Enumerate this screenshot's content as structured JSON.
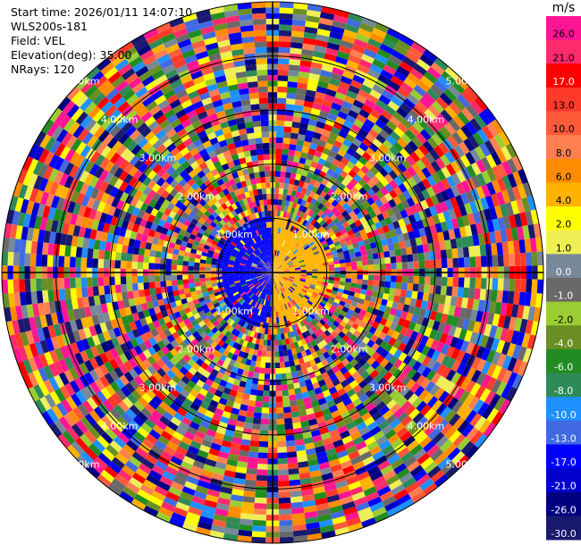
{
  "header": {
    "start_time": "Start time: 2026/01/11 14:07:10",
    "site": "WLS200s-181",
    "field": "Field: VEL",
    "elevation": "Elevation(deg): 35.00",
    "nrays": "NRays: 120"
  },
  "colorbar": {
    "unit": "m/s",
    "levels": [
      {
        "label": "26.0",
        "color": "#ff1493"
      },
      {
        "label": "21.0",
        "color": "#ff2a6d"
      },
      {
        "label": "17.0",
        "color": "#ff0000"
      },
      {
        "label": "13.0",
        "color": "#ff3a2a"
      },
      {
        "label": "10.0",
        "color": "#ff5a3a"
      },
      {
        "label": "8.0",
        "color": "#ff7f50"
      },
      {
        "label": "6.0",
        "color": "#ff8c00"
      },
      {
        "label": "4.0",
        "color": "#ffb300"
      },
      {
        "label": "2.0",
        "color": "#ffff00"
      },
      {
        "label": "1.0",
        "color": "#eeee55"
      },
      {
        "label": "0.0",
        "color": "#778899"
      },
      {
        "label": "-1.0",
        "color": "#696969"
      },
      {
        "label": "-2.0",
        "color": "#9acd32"
      },
      {
        "label": "-4.0",
        "color": "#6b8e23"
      },
      {
        "label": "-6.0",
        "color": "#228b22"
      },
      {
        "label": "-8.0",
        "color": "#2e8b57"
      },
      {
        "label": "-10.0",
        "color": "#1e90ff"
      },
      {
        "label": "-13.0",
        "color": "#4169e1"
      },
      {
        "label": "-17.0",
        "color": "#0000ff"
      },
      {
        "label": "-21.0",
        "color": "#0000cd"
      },
      {
        "label": "-26.0",
        "color": "#000080"
      },
      {
        "label": "-30.0",
        "color": "#191970"
      }
    ]
  },
  "chart_data": {
    "type": "heatmap",
    "projection": "polar",
    "field": "VEL",
    "units": "m/s",
    "nrays": 120,
    "elevation_deg": 35.0,
    "range_rings": [
      {
        "label": "1.00km",
        "range_km": 1.0
      },
      {
        "label": "2.00km",
        "range_km": 2.0
      },
      {
        "label": "3.00km",
        "range_km": 3.0
      },
      {
        "label": "4.00km",
        "range_km": 4.0
      },
      {
        "label": "5.00km",
        "range_km": 5.0
      }
    ],
    "max_range_km": 5.0,
    "dominant_pattern": "noise-like mixed velocities at range > 1 km; near center negative (blue) to the west and positive (orange/yellow) to the east",
    "near_field": {
      "west_sector_velocity_ms": -17.0,
      "east_sector_velocity_ms": 4.0
    },
    "grid": true
  }
}
